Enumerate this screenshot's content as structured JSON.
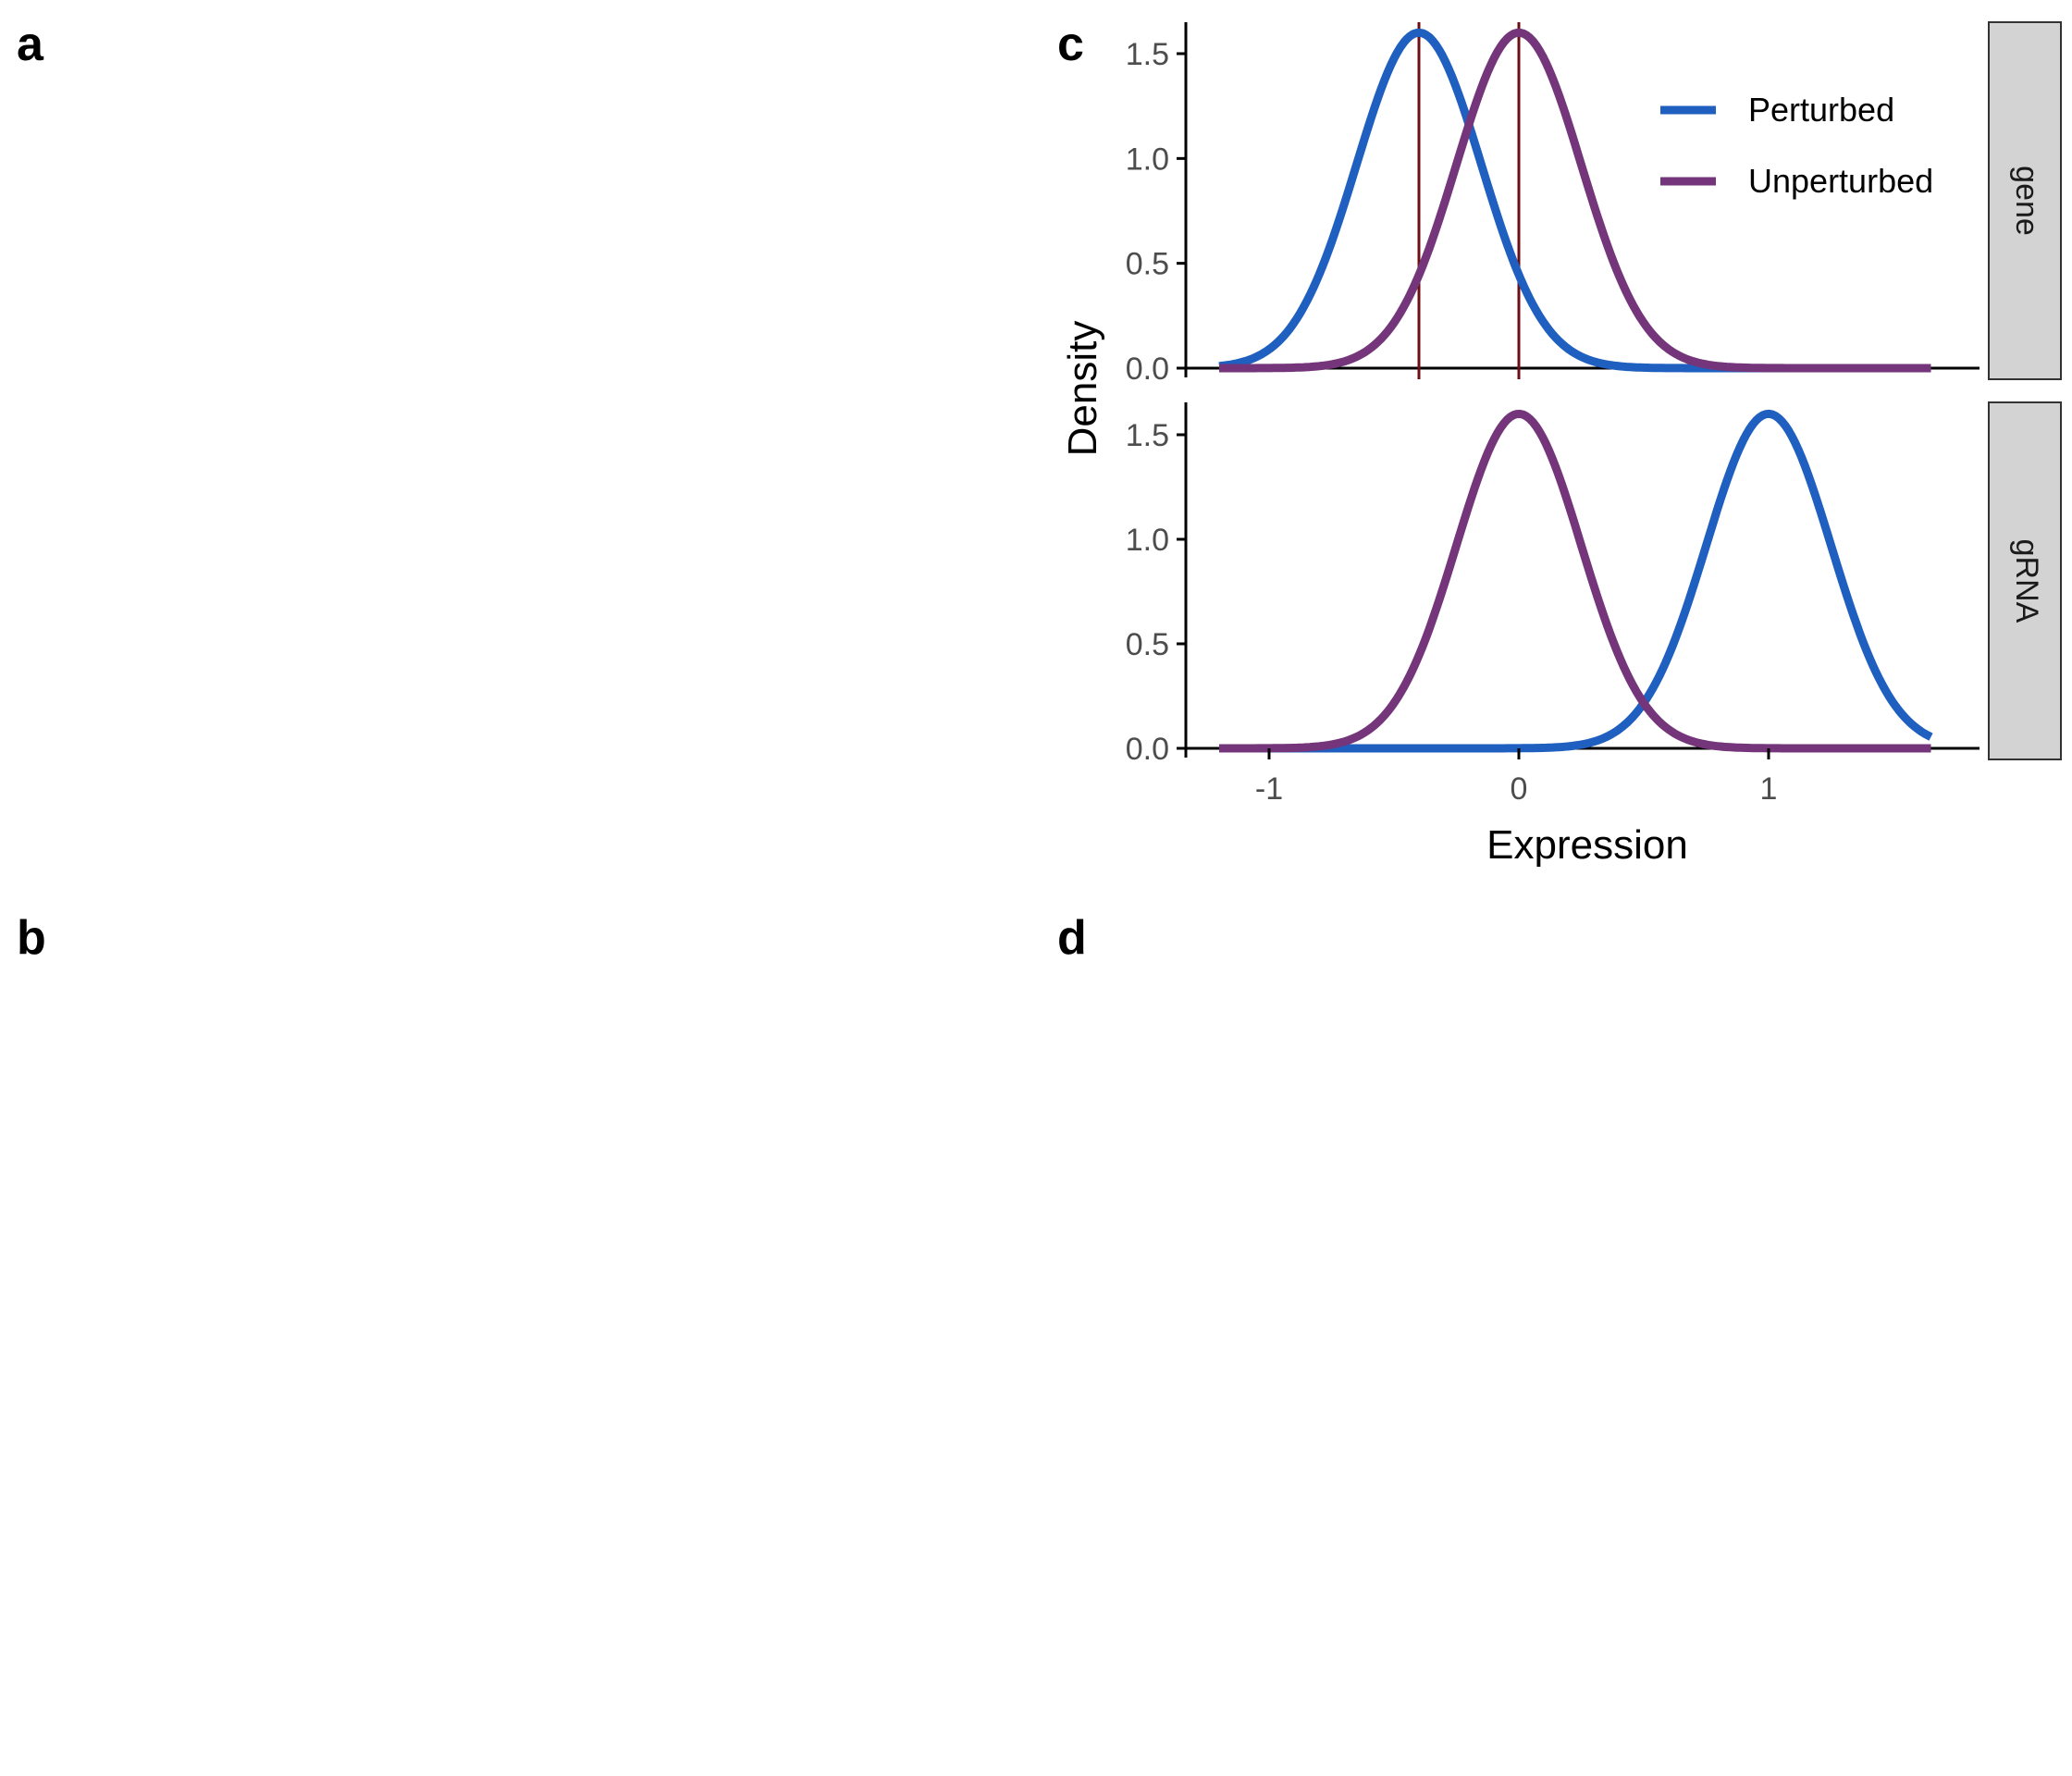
{
  "panels": {
    "a": "a",
    "b": "b",
    "c": "c",
    "d": "d"
  },
  "chart_data": {
    "type": "line",
    "xlabel": "Expression",
    "ylabel": "Density",
    "xlim": [
      -1.2,
      1.65
    ],
    "ylim": [
      0,
      1.6
    ],
    "x_ticks": [
      "-1",
      "0",
      "1"
    ],
    "y_ticks": [
      "0.0",
      "0.5",
      "1.0",
      "1.5"
    ],
    "legend": {
      "position": "top-right",
      "entries": [
        "Perturbed",
        "Unperturbed"
      ]
    },
    "colors": {
      "Perturbed": "#1f5fbf",
      "Unperturbed": "#74357a",
      "vline": "#6b0f14",
      "strip": "#d3d3d3"
    },
    "grid": false,
    "facets": [
      {
        "strip": "gene",
        "vlines": [
          -0.4,
          0
        ],
        "series": [
          {
            "name": "Perturbed",
            "distribution": "normal",
            "mean": -0.4,
            "sd": 0.25
          },
          {
            "name": "Unperturbed",
            "distribution": "normal",
            "mean": 0,
            "sd": 0.25
          }
        ]
      },
      {
        "strip": "gRNA",
        "vlines": [],
        "series": [
          {
            "name": "Perturbed",
            "distribution": "normal",
            "mean": 1,
            "sd": 0.25
          },
          {
            "name": "Unperturbed",
            "distribution": "normal",
            "mean": 0,
            "sd": 0.25
          }
        ]
      }
    ]
  }
}
